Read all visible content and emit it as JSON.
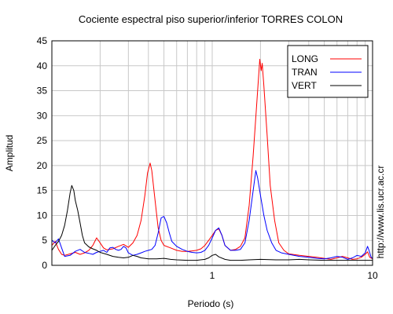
{
  "chart_data": {
    "type": "line",
    "title": "Cociente espectral piso superior/inferior  TORRES COLON",
    "xlabel": "Periodo (s)",
    "ylabel": "Amplitud",
    "x_scale": "log",
    "xlim": [
      0.1,
      10
    ],
    "ylim": [
      0,
      45
    ],
    "yticks": [
      0,
      5,
      10,
      15,
      20,
      25,
      30,
      35,
      40,
      45
    ],
    "xtick_labels": [
      {
        "value": 1,
        "label": "1"
      },
      {
        "value": 10,
        "label": "10"
      }
    ],
    "grid": true,
    "legend_position": "top-right",
    "side_note": "http://www.lis.ucr.ac.cr",
    "series": [
      {
        "name": "LONG",
        "color": "#ff0000",
        "points": [
          [
            0.1,
            4.0
          ],
          [
            0.105,
            4.8
          ],
          [
            0.11,
            3.2
          ],
          [
            0.115,
            2.2
          ],
          [
            0.12,
            2.0
          ],
          [
            0.13,
            2.3
          ],
          [
            0.14,
            2.6
          ],
          [
            0.15,
            2.2
          ],
          [
            0.16,
            2.5
          ],
          [
            0.17,
            3.0
          ],
          [
            0.18,
            4.0
          ],
          [
            0.19,
            5.5
          ],
          [
            0.2,
            4.5
          ],
          [
            0.21,
            3.5
          ],
          [
            0.22,
            3.1
          ],
          [
            0.24,
            3.3
          ],
          [
            0.26,
            3.8
          ],
          [
            0.28,
            4.2
          ],
          [
            0.3,
            3.6
          ],
          [
            0.32,
            4.5
          ],
          [
            0.34,
            6.0
          ],
          [
            0.36,
            9.0
          ],
          [
            0.38,
            14.0
          ],
          [
            0.395,
            18.5
          ],
          [
            0.41,
            20.5
          ],
          [
            0.42,
            19.0
          ],
          [
            0.44,
            13.0
          ],
          [
            0.46,
            7.5
          ],
          [
            0.48,
            5.0
          ],
          [
            0.5,
            4.0
          ],
          [
            0.55,
            3.5
          ],
          [
            0.6,
            3.0
          ],
          [
            0.65,
            2.8
          ],
          [
            0.7,
            2.8
          ],
          [
            0.75,
            2.9
          ],
          [
            0.8,
            3.0
          ],
          [
            0.85,
            3.3
          ],
          [
            0.9,
            4.0
          ],
          [
            0.95,
            5.0
          ],
          [
            1.0,
            6.0
          ],
          [
            1.05,
            7.0
          ],
          [
            1.1,
            7.3
          ],
          [
            1.15,
            6.0
          ],
          [
            1.2,
            4.0
          ],
          [
            1.3,
            3.0
          ],
          [
            1.4,
            3.2
          ],
          [
            1.5,
            3.8
          ],
          [
            1.6,
            5.5
          ],
          [
            1.7,
            12.0
          ],
          [
            1.8,
            22.0
          ],
          [
            1.9,
            33.0
          ],
          [
            1.98,
            41.3
          ],
          [
            2.02,
            39.0
          ],
          [
            2.05,
            40.5
          ],
          [
            2.1,
            36.0
          ],
          [
            2.2,
            26.0
          ],
          [
            2.3,
            16.0
          ],
          [
            2.45,
            9.0
          ],
          [
            2.6,
            4.5
          ],
          [
            2.8,
            3.0
          ],
          [
            3.0,
            2.3
          ],
          [
            3.5,
            2.0
          ],
          [
            4.0,
            1.8
          ],
          [
            4.5,
            1.6
          ],
          [
            5.0,
            1.4
          ],
          [
            5.5,
            1.2
          ],
          [
            6.0,
            1.5
          ],
          [
            6.5,
            1.8
          ],
          [
            7.0,
            1.5
          ],
          [
            7.5,
            1.2
          ],
          [
            8.0,
            1.3
          ],
          [
            8.5,
            1.6
          ],
          [
            9.0,
            2.2
          ],
          [
            9.3,
            2.7
          ],
          [
            9.6,
            1.6
          ],
          [
            10.0,
            1.3
          ]
        ]
      },
      {
        "name": "TRAN",
        "color": "#0000ff",
        "points": [
          [
            0.1,
            5.0
          ],
          [
            0.105,
            4.5
          ],
          [
            0.11,
            5.3
          ],
          [
            0.115,
            3.5
          ],
          [
            0.12,
            1.8
          ],
          [
            0.13,
            2.0
          ],
          [
            0.14,
            2.8
          ],
          [
            0.15,
            3.2
          ],
          [
            0.16,
            2.6
          ],
          [
            0.17,
            2.4
          ],
          [
            0.18,
            2.2
          ],
          [
            0.19,
            2.6
          ],
          [
            0.2,
            2.8
          ],
          [
            0.21,
            3.0
          ],
          [
            0.22,
            2.6
          ],
          [
            0.23,
            3.5
          ],
          [
            0.24,
            3.6
          ],
          [
            0.25,
            3.2
          ],
          [
            0.26,
            3.0
          ],
          [
            0.27,
            3.2
          ],
          [
            0.28,
            3.8
          ],
          [
            0.29,
            3.5
          ],
          [
            0.3,
            2.5
          ],
          [
            0.32,
            2.0
          ],
          [
            0.34,
            2.2
          ],
          [
            0.36,
            2.5
          ],
          [
            0.38,
            2.8
          ],
          [
            0.4,
            3.0
          ],
          [
            0.42,
            3.2
          ],
          [
            0.44,
            4.0
          ],
          [
            0.46,
            6.5
          ],
          [
            0.48,
            9.5
          ],
          [
            0.5,
            9.8
          ],
          [
            0.52,
            8.5
          ],
          [
            0.54,
            6.5
          ],
          [
            0.56,
            4.8
          ],
          [
            0.6,
            3.8
          ],
          [
            0.65,
            3.2
          ],
          [
            0.7,
            2.8
          ],
          [
            0.75,
            2.6
          ],
          [
            0.8,
            2.5
          ],
          [
            0.85,
            2.6
          ],
          [
            0.9,
            3.0
          ],
          [
            0.95,
            4.0
          ],
          [
            1.0,
            5.5
          ],
          [
            1.05,
            7.0
          ],
          [
            1.1,
            7.5
          ],
          [
            1.15,
            6.0
          ],
          [
            1.2,
            4.0
          ],
          [
            1.3,
            3.0
          ],
          [
            1.4,
            3.0
          ],
          [
            1.5,
            3.2
          ],
          [
            1.6,
            4.5
          ],
          [
            1.7,
            9.0
          ],
          [
            1.8,
            15.0
          ],
          [
            1.87,
            19.0
          ],
          [
            1.92,
            17.5
          ],
          [
            2.0,
            14.0
          ],
          [
            2.1,
            10.0
          ],
          [
            2.2,
            7.0
          ],
          [
            2.35,
            4.5
          ],
          [
            2.5,
            3.0
          ],
          [
            2.7,
            2.5
          ],
          [
            3.0,
            2.2
          ],
          [
            3.5,
            1.8
          ],
          [
            4.0,
            1.6
          ],
          [
            4.5,
            1.4
          ],
          [
            5.0,
            1.3
          ],
          [
            5.5,
            1.5
          ],
          [
            6.0,
            1.8
          ],
          [
            6.5,
            1.6
          ],
          [
            7.0,
            1.2
          ],
          [
            7.5,
            1.5
          ],
          [
            8.0,
            2.0
          ],
          [
            8.5,
            1.8
          ],
          [
            9.0,
            2.5
          ],
          [
            9.3,
            3.8
          ],
          [
            9.5,
            3.0
          ],
          [
            9.8,
            1.6
          ],
          [
            10.0,
            1.4
          ]
        ]
      },
      {
        "name": "VERT",
        "color": "#000000",
        "points": [
          [
            0.1,
            3.0
          ],
          [
            0.105,
            4.0
          ],
          [
            0.11,
            4.8
          ],
          [
            0.115,
            6.0
          ],
          [
            0.12,
            8.0
          ],
          [
            0.125,
            11.0
          ],
          [
            0.13,
            14.5
          ],
          [
            0.133,
            16.0
          ],
          [
            0.137,
            15.0
          ],
          [
            0.14,
            13.0
          ],
          [
            0.145,
            11.0
          ],
          [
            0.15,
            8.5
          ],
          [
            0.155,
            6.0
          ],
          [
            0.16,
            4.5
          ],
          [
            0.17,
            3.7
          ],
          [
            0.18,
            3.3
          ],
          [
            0.19,
            3.0
          ],
          [
            0.2,
            2.6
          ],
          [
            0.22,
            2.2
          ],
          [
            0.24,
            1.8
          ],
          [
            0.26,
            1.6
          ],
          [
            0.28,
            1.5
          ],
          [
            0.3,
            1.6
          ],
          [
            0.32,
            2.0
          ],
          [
            0.34,
            1.8
          ],
          [
            0.36,
            1.5
          ],
          [
            0.38,
            1.4
          ],
          [
            0.4,
            1.3
          ],
          [
            0.45,
            1.3
          ],
          [
            0.5,
            1.4
          ],
          [
            0.55,
            1.2
          ],
          [
            0.6,
            1.1
          ],
          [
            0.7,
            1.0
          ],
          [
            0.8,
            1.0
          ],
          [
            0.9,
            1.2
          ],
          [
            0.95,
            1.5
          ],
          [
            1.0,
            2.0
          ],
          [
            1.05,
            2.2
          ],
          [
            1.1,
            1.7
          ],
          [
            1.2,
            1.2
          ],
          [
            1.3,
            1.0
          ],
          [
            1.5,
            1.0
          ],
          [
            1.7,
            1.1
          ],
          [
            2.0,
            1.2
          ],
          [
            2.5,
            1.1
          ],
          [
            3.0,
            1.1
          ],
          [
            3.5,
            1.2
          ],
          [
            4.0,
            1.1
          ],
          [
            5.0,
            1.0
          ],
          [
            6.0,
            1.0
          ],
          [
            7.0,
            1.0
          ],
          [
            8.0,
            1.0
          ],
          [
            9.0,
            1.0
          ],
          [
            10.0,
            1.0
          ]
        ]
      }
    ]
  }
}
